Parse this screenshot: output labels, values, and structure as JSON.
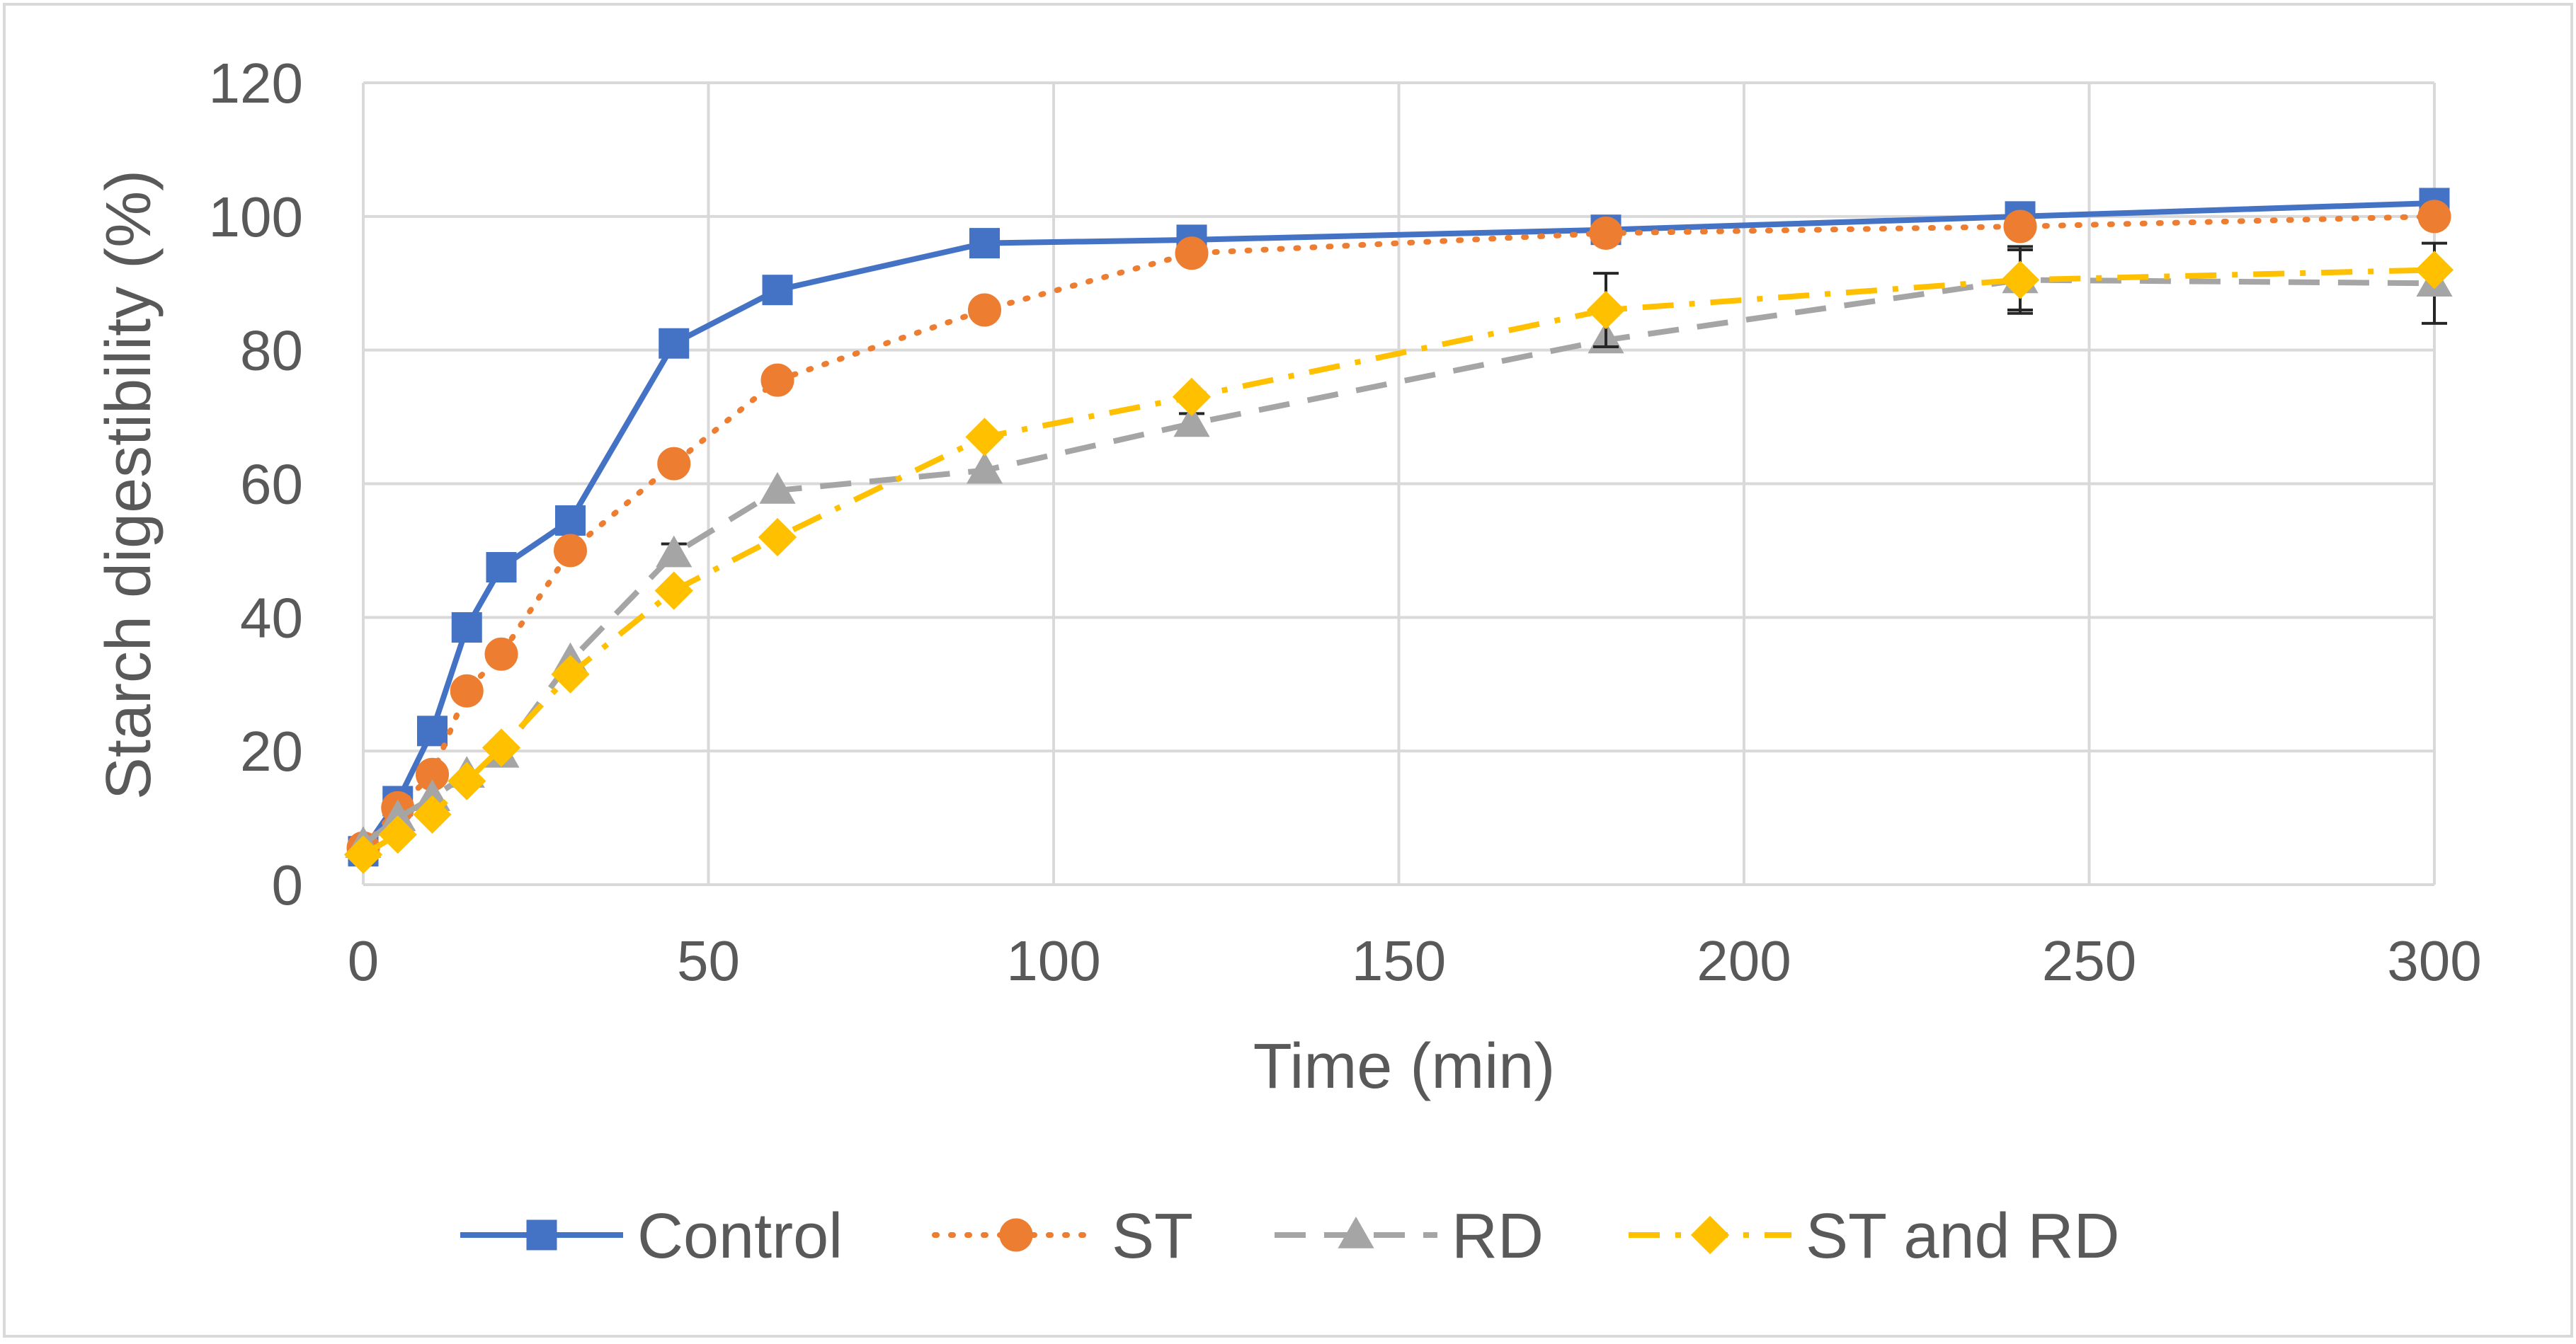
{
  "chart_data": {
    "type": "line",
    "title": "",
    "xlabel": "Time (min)",
    "ylabel": "Starch digestibility (%)",
    "xlim": [
      0,
      300
    ],
    "ylim": [
      0,
      120
    ],
    "x_ticks": [
      0,
      50,
      100,
      150,
      200,
      250,
      300
    ],
    "y_ticks": [
      0,
      20,
      40,
      60,
      80,
      100,
      120
    ],
    "x_tick_labels": [
      "0",
      "50",
      "100",
      "150",
      "200",
      "250",
      "300"
    ],
    "y_tick_labels": [
      "0",
      "20",
      "40",
      "60",
      "80",
      "100",
      "120"
    ],
    "grid": true,
    "legend_position": "bottom",
    "x": [
      0,
      5,
      10,
      15,
      20,
      30,
      45,
      60,
      90,
      120,
      180,
      240,
      300
    ],
    "series": [
      {
        "name": "Control",
        "color": "#4472C4",
        "line_style": "solid",
        "marker": "square",
        "values": [
          5,
          12.5,
          23,
          38.5,
          47.5,
          54.5,
          81,
          89,
          96,
          96.5,
          98,
          100,
          102
        ],
        "error": [
          0,
          0,
          0,
          0,
          0,
          0,
          0,
          0,
          0,
          0,
          0,
          0,
          0
        ]
      },
      {
        "name": "ST",
        "color": "#ED7D31",
        "line_style": "dotted",
        "marker": "circle",
        "values": [
          5.5,
          11.5,
          16.5,
          29,
          34.5,
          50,
          63,
          75.5,
          86,
          94.5,
          97.5,
          98.5,
          100
        ],
        "error": [
          0,
          0,
          0,
          0,
          0,
          0,
          0,
          0,
          0,
          0,
          0,
          0,
          0
        ]
      },
      {
        "name": "RD",
        "color": "#A5A5A5",
        "line_style": "dashed",
        "marker": "triangle",
        "values": [
          6,
          10,
          13,
          16.5,
          19.5,
          33.5,
          49.5,
          59,
          62,
          69,
          81.5,
          90.5,
          90
        ],
        "error": [
          0,
          0,
          0,
          0,
          0,
          0,
          1.5,
          0,
          0,
          1.5,
          0,
          5,
          6
        ]
      },
      {
        "name": "ST and RD",
        "color": "#FFC000",
        "line_style": "dashdot",
        "marker": "diamond",
        "values": [
          4.5,
          7.5,
          10.5,
          15.5,
          20.5,
          31.5,
          44,
          52,
          67,
          73,
          86,
          90.5,
          92
        ],
        "error": [
          0,
          0,
          0,
          0,
          0,
          0,
          0,
          0,
          0,
          0,
          5.5,
          4.5,
          0
        ]
      }
    ]
  }
}
